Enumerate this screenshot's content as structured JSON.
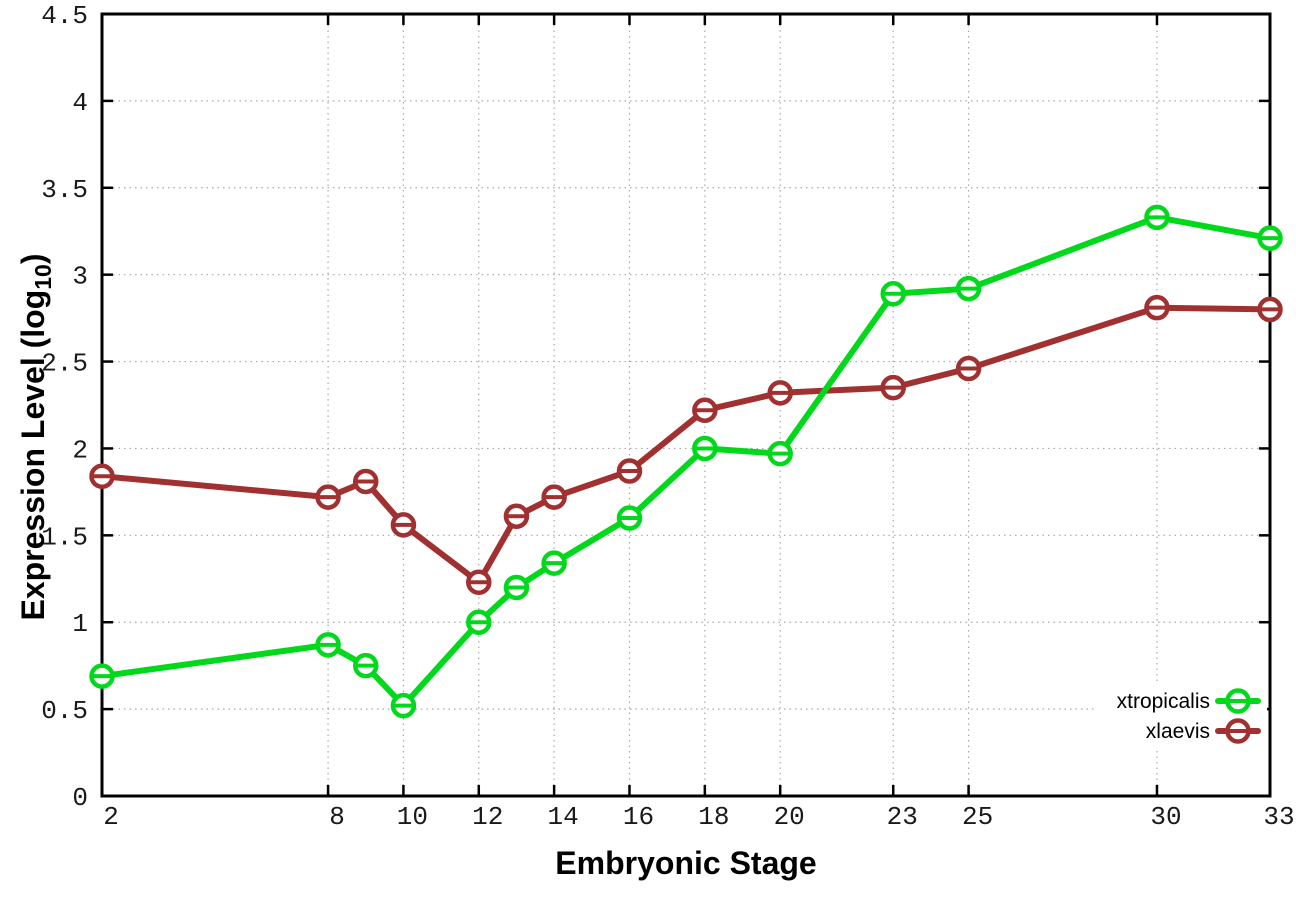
{
  "chart_data": {
    "type": "line",
    "title": "",
    "xlabel": "Embryonic Stage",
    "ylabel": "Expression Level (log10)",
    "ylabel_parts": {
      "prefix": "Expression Level (log",
      "subscript": "10",
      "suffix": ")"
    },
    "xlim": [
      2,
      33
    ],
    "ylim": [
      0,
      4.5
    ],
    "grid": true,
    "legend_position": "inside-bottom-right",
    "x_ticks": [
      2,
      8,
      10,
      12,
      14,
      16,
      18,
      20,
      23,
      25,
      30,
      33
    ],
    "x_tick_labels": [
      "2",
      "8",
      "10",
      "12",
      "14",
      "16",
      "18",
      "20",
      "23",
      "25",
      "30",
      "33"
    ],
    "y_ticks": [
      0,
      0.5,
      1,
      1.5,
      2,
      2.5,
      3,
      3.5,
      4,
      4.5
    ],
    "y_tick_labels": [
      "0",
      "0.5",
      "1",
      "1.5",
      "2",
      "2.5",
      "3",
      "3.5",
      "4",
      "4.5"
    ],
    "x": [
      2,
      8,
      9,
      10,
      12,
      13,
      14,
      16,
      18,
      20,
      23,
      25,
      30,
      33
    ],
    "series": [
      {
        "name": "xtropicalis",
        "color": "#00d91b",
        "marker": "open-circle-with-errorbar",
        "values": [
          0.69,
          0.87,
          0.75,
          0.52,
          1.0,
          1.2,
          1.34,
          1.6,
          2.0,
          1.97,
          2.89,
          2.92,
          3.33,
          3.21
        ]
      },
      {
        "name": "xlaevis",
        "color": "#a13030",
        "marker": "open-circle-with-errorbar",
        "values": [
          1.84,
          1.72,
          1.81,
          1.56,
          1.23,
          1.61,
          1.72,
          1.87,
          2.22,
          2.32,
          2.35,
          2.46,
          2.81,
          2.8
        ]
      }
    ]
  },
  "styles": {
    "background": "#ffffff",
    "axis_color": "#000000",
    "grid_color": "#a8a8a8",
    "tick_label_color": "#1a1a1a",
    "marker_fill": "#ffffff"
  }
}
